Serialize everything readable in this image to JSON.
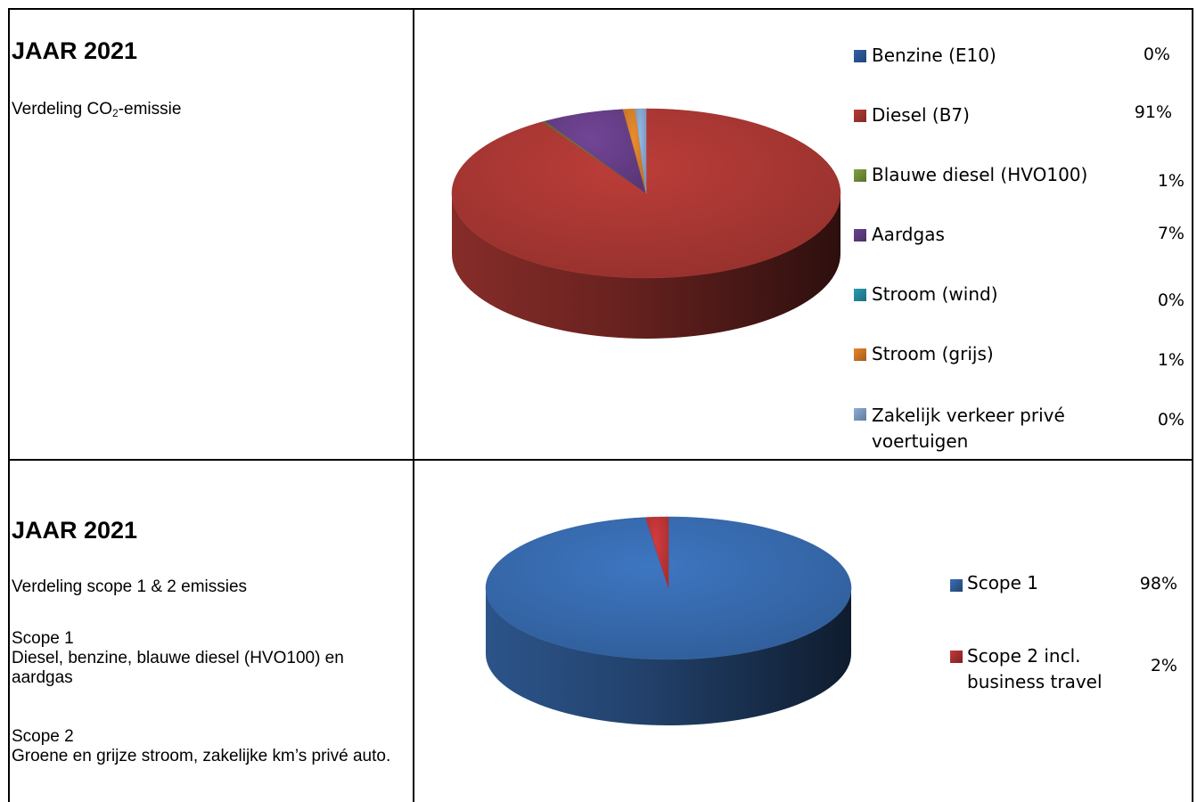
{
  "chart_data": [
    {
      "type": "pie",
      "title": "JAAR 2021",
      "subtitle_prefix": "Verdeling CO",
      "subtitle_sub": "2",
      "subtitle_suffix": "-emissie",
      "categories": [
        "Benzine (E10)",
        "Diesel (B7)",
        "Blauwe diesel (HVO100)",
        "Aardgas",
        "Stroom (wind)",
        "Stroom (grijs)",
        "Zakelijk verkeer privé voertuigen"
      ],
      "values": [
        0,
        91,
        1,
        7,
        0,
        1,
        0
      ],
      "labels": [
        "0%",
        "91%",
        "1%",
        "7%",
        "0%",
        "1%",
        "0%"
      ],
      "slices_drawn": [
        91,
        0.3,
        6.8,
        1.0,
        0.9
      ],
      "slice_colors": [
        "#b33a36",
        "#7b6a3a",
        "#6d4290",
        "#e0852c",
        "#8fafd8"
      ],
      "colors": [
        "#2f62a8",
        "#b83a35",
        "#7ea23f",
        "#6b4290",
        "#2a9cb0",
        "#e9852a",
        "#8daed9"
      ],
      "legend_placement": "right"
    },
    {
      "type": "pie",
      "title": "JAAR 2021",
      "categories": [
        "Scope 1",
        "Scope 2 incl. business travel"
      ],
      "values": [
        98,
        2
      ],
      "labels": [
        "98%",
        "2%"
      ],
      "colors": [
        "#3a70b8",
        "#c8383b"
      ],
      "legend_placement": "right"
    }
  ],
  "section2": {
    "subtitle": "Verdeling scope 1 & 2 emissies",
    "scope1_title": "Scope 1",
    "scope1_text": "Diesel, benzine, blauwe diesel (HVO100) en aardgas",
    "scope2_title": "Scope 2",
    "scope2_text": "Groene en grijze stroom, zakelijke km’s privé auto."
  },
  "legend2": {
    "scope2_line1": "Scope 2 incl.",
    "scope2_line2": "business travel"
  },
  "legend1": {
    "last_line1": "Zakelijk verkeer privé",
    "last_line2": "voertuigen"
  }
}
